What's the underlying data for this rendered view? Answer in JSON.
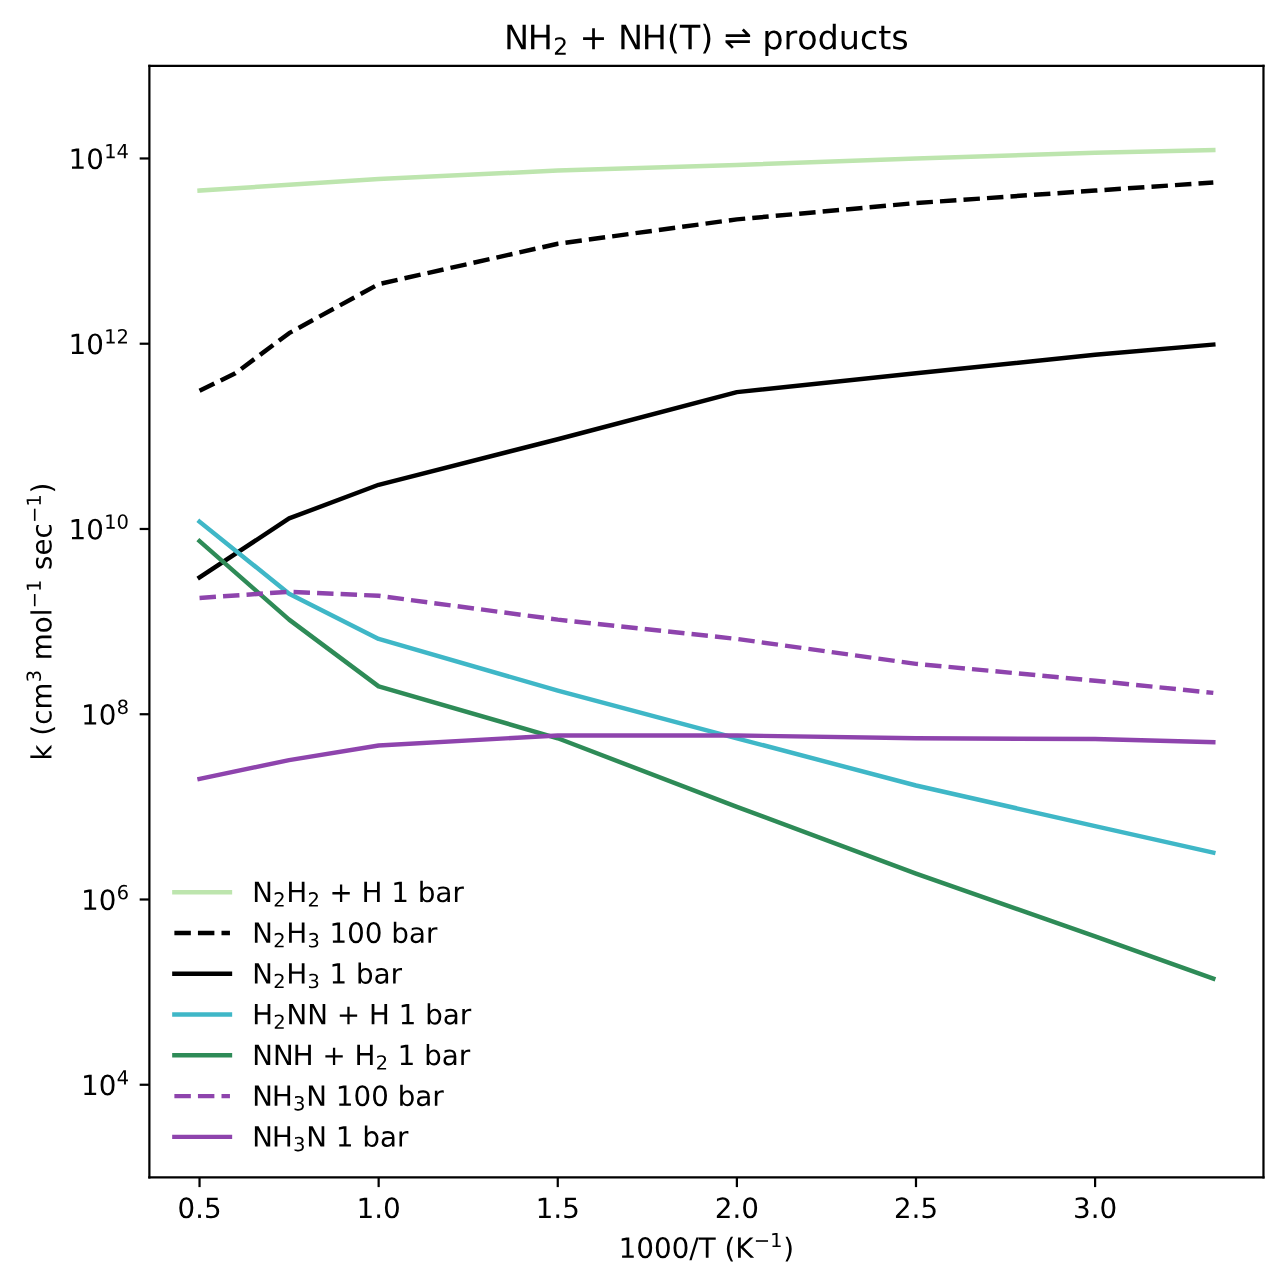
{
  "chart_data": {
    "type": "line",
    "title": "NH$_{2}$ + NH(T) ⇌ products",
    "xlabel": "1000/T (K$^{−1}$)",
    "ylabel": "k (cm$^{3}$ mol$^{−1}$ sec$^{−1}$)",
    "log": "y",
    "xlim": [
      0.36,
      3.47
    ],
    "xticks": [
      0.5,
      {
        "value": 1,
        "label": "1.0"
      },
      1.5,
      {
        "value": 2,
        "label": "2.0"
      },
      2.5,
      {
        "value": 3,
        "label": "3.0"
      }
    ],
    "ylim": [
      1000,
      1000000000000000.0
    ],
    "yticks": [
      {
        "value": 10000,
        "label": "10$^{4}$"
      },
      {
        "value": 1000000,
        "label": "10$^{6}$"
      },
      {
        "value": 100000000,
        "label": "10$^{8}$"
      },
      {
        "value": 10000000000,
        "label": "10$^{10}$"
      },
      {
        "value": 1000000000000,
        "label": "10$^{12}$"
      },
      {
        "value": 100000000000000,
        "label": "10$^{14}$"
      }
    ],
    "grid": false,
    "legend": "bottom left",
    "marker": "none",
    "series": [
      {
        "name": "N$_{2}$H$_{2}$ + H 1 bar",
        "color": "#bde5ae",
        "line_style": "solid",
        "x": [
          0.5,
          0.75,
          1.0,
          1.5,
          2.0,
          2.5,
          3.0,
          3.33
        ],
        "values": [
          45000000000000.0,
          52000000000000.0,
          60000000000000.0,
          74000000000000.0,
          85000000000000.0,
          100000000000000.0,
          115000000000000.0,
          123000000000000.0
        ]
      },
      {
        "name": "N$_{2}$H$_{3}$ 100 bar",
        "color": "#000000",
        "line_style": "dashed",
        "x": [
          0.5,
          0.6,
          0.75,
          1.0,
          1.5,
          2.0,
          2.5,
          3.0,
          3.33
        ],
        "values": [
          310000000000.0,
          480000000000.0,
          1300000000000.0,
          4400000000000.0,
          12000000000000.0,
          22000000000000.0,
          33000000000000.0,
          45000000000000.0,
          55000000000000.0
        ]
      },
      {
        "name": "N$_{2}$H$_{3}$ 1 bar",
        "color": "#000000",
        "line_style": "solid",
        "x": [
          0.5,
          0.75,
          1.0,
          1.5,
          2.0,
          2.5,
          3.0,
          3.33
        ],
        "values": [
          3000000000.0,
          13000000000.0,
          30000000000.0,
          93000000000.0,
          300000000000.0,
          480000000000.0,
          760000000000.0,
          980000000000.0
        ]
      },
      {
        "name": "H$_{2}$NN + H 1 bar",
        "color": "#3fb7c7",
        "line_style": "solid",
        "x": [
          0.5,
          0.75,
          1.0,
          1.5,
          2.0,
          2.5,
          3.0,
          3.33
        ],
        "values": [
          12000000000.0,
          2000000000.0,
          650000000.0,
          180000000.0,
          55000000.0,
          17000000.0,
          6200000.0,
          3200000.0
        ]
      },
      {
        "name": "NNH + H$_{2}$ 1 bar",
        "color": "#2e8b57",
        "line_style": "solid",
        "x": [
          0.5,
          0.75,
          1.0,
          1.5,
          2.0,
          2.5,
          3.0,
          3.33
        ],
        "values": [
          7400000000.0,
          1050000000.0,
          200000000.0,
          55000000.0,
          10000000.0,
          1900000.0,
          400000.0,
          140000.0
        ]
      },
      {
        "name": "NH$_{3}$N 100 bar",
        "color": "#8e44ad",
        "line_style": "dashed",
        "x": [
          0.5,
          0.75,
          1.0,
          1.5,
          2.0,
          2.5,
          3.0,
          3.33
        ],
        "values": [
          1800000000.0,
          2100000000.0,
          1900000000.0,
          1050000000.0,
          650000000.0,
          350000000.0,
          230000000.0,
          170000000.0
        ]
      },
      {
        "name": "NH$_{3}$N 1 bar",
        "color": "#8e44ad",
        "line_style": "solid",
        "x": [
          0.5,
          0.75,
          1.0,
          1.5,
          2.0,
          2.5,
          3.0,
          3.33
        ],
        "values": [
          20000000.0,
          32000000.0,
          46000000.0,
          59000000.0,
          59000000.0,
          55000000.0,
          54000000.0,
          50000000.0
        ]
      }
    ]
  }
}
